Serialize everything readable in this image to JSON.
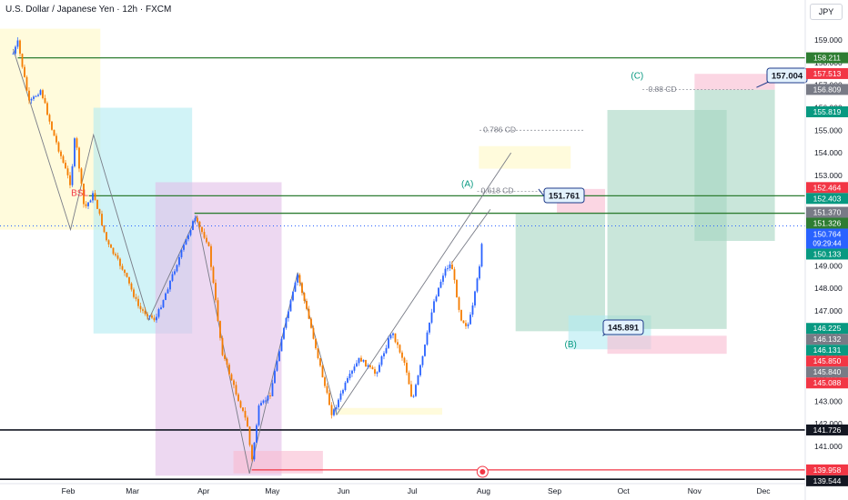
{
  "header": {
    "title": "U.S. Dollar / Japanese Yen · 12h · FXCM",
    "currency": "JPY"
  },
  "colors": {
    "up": "#2962ff",
    "down": "#f57c00",
    "green_line": "#2e7d32",
    "black_line": "#131722",
    "yellow_zone": "#fff9c4",
    "cyan_zone": "#b2ebf2",
    "purple_zone": "#e1bee7",
    "red_zone": "#f8bbd0",
    "target_zone": "#a5d6c1",
    "callout_border": "#1e3a8a",
    "callout_fill": "#e3f2fd"
  },
  "chart_data": {
    "type": "candlestick",
    "title": "U.S. Dollar / Japanese Yen · 12h · FXCM",
    "ylim": [
      139.5,
      160.0
    ],
    "y_ticks": [
      141.0,
      142.0,
      143.0,
      144.0,
      145.0,
      146.0,
      147.0,
      148.0,
      149.0,
      150.0,
      151.0,
      152.0,
      153.0,
      154.0,
      155.0,
      156.0,
      157.0,
      158.0,
      159.0
    ],
    "x_ticks": [
      "Feb",
      "Mar",
      "Apr",
      "May",
      "Jun",
      "Jul",
      "Aug",
      "Sep",
      "Oct",
      "Nov",
      "Dec"
    ],
    "price_path": [
      [
        "2025-01-08",
        158.4
      ],
      [
        "2025-01-10",
        158.9
      ],
      [
        "2025-01-15",
        156.2
      ],
      [
        "2025-01-20",
        156.8
      ],
      [
        "2025-01-25",
        155.0
      ],
      [
        "2025-02-02",
        152.6
      ],
      [
        "2025-02-04",
        154.8
      ],
      [
        "2025-02-08",
        151.5
      ],
      [
        "2025-02-12",
        152.2
      ],
      [
        "2025-02-18",
        150.0
      ],
      [
        "2025-02-25",
        148.8
      ],
      [
        "2025-03-04",
        147.1
      ],
      [
        "2025-03-11",
        146.6
      ],
      [
        "2025-03-20",
        149.0
      ],
      [
        "2025-03-28",
        151.1
      ],
      [
        "2025-04-03",
        150.0
      ],
      [
        "2025-04-09",
        145.2
      ],
      [
        "2025-04-15",
        143.4
      ],
      [
        "2025-04-20",
        142.0
      ],
      [
        "2025-04-22",
        140.3
      ],
      [
        "2025-04-25",
        142.7
      ],
      [
        "2025-04-30",
        143.3
      ],
      [
        "2025-05-05",
        145.8
      ],
      [
        "2025-05-12",
        148.6
      ],
      [
        "2025-05-18",
        146.2
      ],
      [
        "2025-05-24",
        143.6
      ],
      [
        "2025-05-27",
        142.4
      ],
      [
        "2025-06-02",
        143.8
      ],
      [
        "2025-06-08",
        144.9
      ],
      [
        "2025-06-15",
        144.2
      ],
      [
        "2025-06-22",
        146.1
      ],
      [
        "2025-06-28",
        144.6
      ],
      [
        "2025-07-01",
        143.0
      ],
      [
        "2025-07-06",
        145.2
      ],
      [
        "2025-07-10",
        147.3
      ],
      [
        "2025-07-15",
        148.8
      ],
      [
        "2025-07-18",
        149.1
      ],
      [
        "2025-07-22",
        146.7
      ],
      [
        "2025-07-25",
        146.3
      ],
      [
        "2025-07-27",
        147.0
      ],
      [
        "2025-07-30",
        148.8
      ],
      [
        "2025-08-01",
        150.76
      ]
    ],
    "current_price": "150.764",
    "countdown": "09:29:44",
    "price_labels": [
      {
        "value": "158.211",
        "color": "#2e7d32"
      },
      {
        "value": "157.513",
        "color": "#f23645"
      },
      {
        "value": "156.809",
        "color": "#787b86"
      },
      {
        "value": "155.819",
        "color": "#089981"
      },
      {
        "value": "152.464",
        "color": "#f23645"
      },
      {
        "value": "152.403",
        "color": "#089981"
      },
      {
        "value": "151.370",
        "color": "#787b86"
      },
      {
        "value": "151.326",
        "color": "#2e7d32"
      },
      {
        "value": "150.764",
        "color": "#2962ff"
      },
      {
        "value": "150.133",
        "color": "#089981"
      },
      {
        "value": "146.225",
        "color": "#089981"
      },
      {
        "value": "146.132",
        "color": "#787b86"
      },
      {
        "value": "146.131",
        "color": "#089981"
      },
      {
        "value": "145.850",
        "color": "#f23645"
      },
      {
        "value": "145.840",
        "color": "#787b86"
      },
      {
        "value": "145.088",
        "color": "#f23645"
      },
      {
        "value": "141.726",
        "color": "#131722"
      },
      {
        "value": "139.958",
        "color": "#f23645"
      },
      {
        "value": "139.544",
        "color": "#131722"
      }
    ],
    "horizontal_lines": [
      {
        "value": 158.211,
        "color": "#2e7d32",
        "from": "2025-01-10"
      },
      {
        "value": 152.1,
        "color": "#2e7d32",
        "from": "2025-02-10"
      },
      {
        "value": 151.326,
        "color": "#2e7d32",
        "from": "2025-03-28"
      },
      {
        "value": 141.726,
        "color": "#131722",
        "from": "2024-12-28"
      },
      {
        "value": 139.544,
        "color": "#131722",
        "from": "2024-12-28"
      },
      {
        "value": 139.958,
        "color": "#f23645",
        "from": "2025-04-22"
      }
    ],
    "zones": [
      {
        "x0": "2025-01-01",
        "x1": "2025-02-15",
        "y0": 150.6,
        "y1": 159.5,
        "fill": "#fff9c4"
      },
      {
        "x0": "2025-02-12",
        "x1": "2025-03-27",
        "y0": 146.0,
        "y1": 156.0,
        "fill": "#b2ebf2"
      },
      {
        "x0": "2025-03-11",
        "x1": "2025-05-05",
        "y0": 139.7,
        "y1": 152.7,
        "fill": "#e1bee7"
      },
      {
        "x0": "2025-04-14",
        "x1": "2025-05-23",
        "y0": 139.8,
        "y1": 140.8,
        "fill": "#f8bbd0"
      },
      {
        "x0": "2025-05-27",
        "x1": "2025-07-14",
        "y0": 142.4,
        "y1": 142.7,
        "fill": "#fff9c4"
      },
      {
        "x0": "2025-07-30",
        "x1": "2025-09-08",
        "y0": 153.3,
        "y1": 154.3,
        "fill": "#fff9c4"
      },
      {
        "x0": "2025-08-15",
        "x1": "2025-09-23",
        "y0": 146.1,
        "y1": 151.3,
        "fill": "#a5d6c1"
      },
      {
        "x0": "2025-09-02",
        "x1": "2025-09-23",
        "y0": 151.3,
        "y1": 152.4,
        "fill": "#f8bbd0"
      },
      {
        "x0": "2025-09-07",
        "x1": "2025-10-13",
        "y0": 145.3,
        "y1": 146.8,
        "fill": "#b2ebf2"
      },
      {
        "x0": "2025-09-24",
        "x1": "2025-11-15",
        "y0": 146.2,
        "y1": 155.9,
        "fill": "#a5d6c1"
      },
      {
        "x0": "2025-09-24",
        "x1": "2025-11-15",
        "y0": 145.1,
        "y1": 145.9,
        "fill": "#f8bbd0"
      },
      {
        "x0": "2025-11-01",
        "x1": "2025-12-06",
        "y0": 150.1,
        "y1": 156.8,
        "fill": "#a5d6c1"
      },
      {
        "x0": "2025-11-01",
        "x1": "2025-12-06",
        "y0": 156.8,
        "y1": 157.5,
        "fill": "#f8bbd0"
      }
    ],
    "annotations": [
      {
        "text": "BSL",
        "date": "2025-02-06",
        "value": 152.2,
        "color": "#f23645"
      },
      {
        "text": "(A)",
        "date": "2025-07-25",
        "value": 152.6,
        "color": "#089981"
      },
      {
        "text": "(B)",
        "date": "2025-09-08",
        "value": 145.5,
        "color": "#089981"
      },
      {
        "text": "(C)",
        "date": "2025-10-07",
        "value": 157.4,
        "color": "#089981"
      },
      {
        "text": "0.786 CD",
        "date": "2025-08-08",
        "value": 155.0,
        "color": "#787b86"
      },
      {
        "text": "0.618 CD",
        "date": "2025-08-07",
        "value": 152.3,
        "color": "#787b86"
      },
      {
        "text": "0.88 CD",
        "date": "2025-10-18",
        "value": 156.8,
        "color": "#787b86"
      }
    ],
    "callouts": [
      "151.761",
      "145.891",
      "157.004"
    ]
  }
}
